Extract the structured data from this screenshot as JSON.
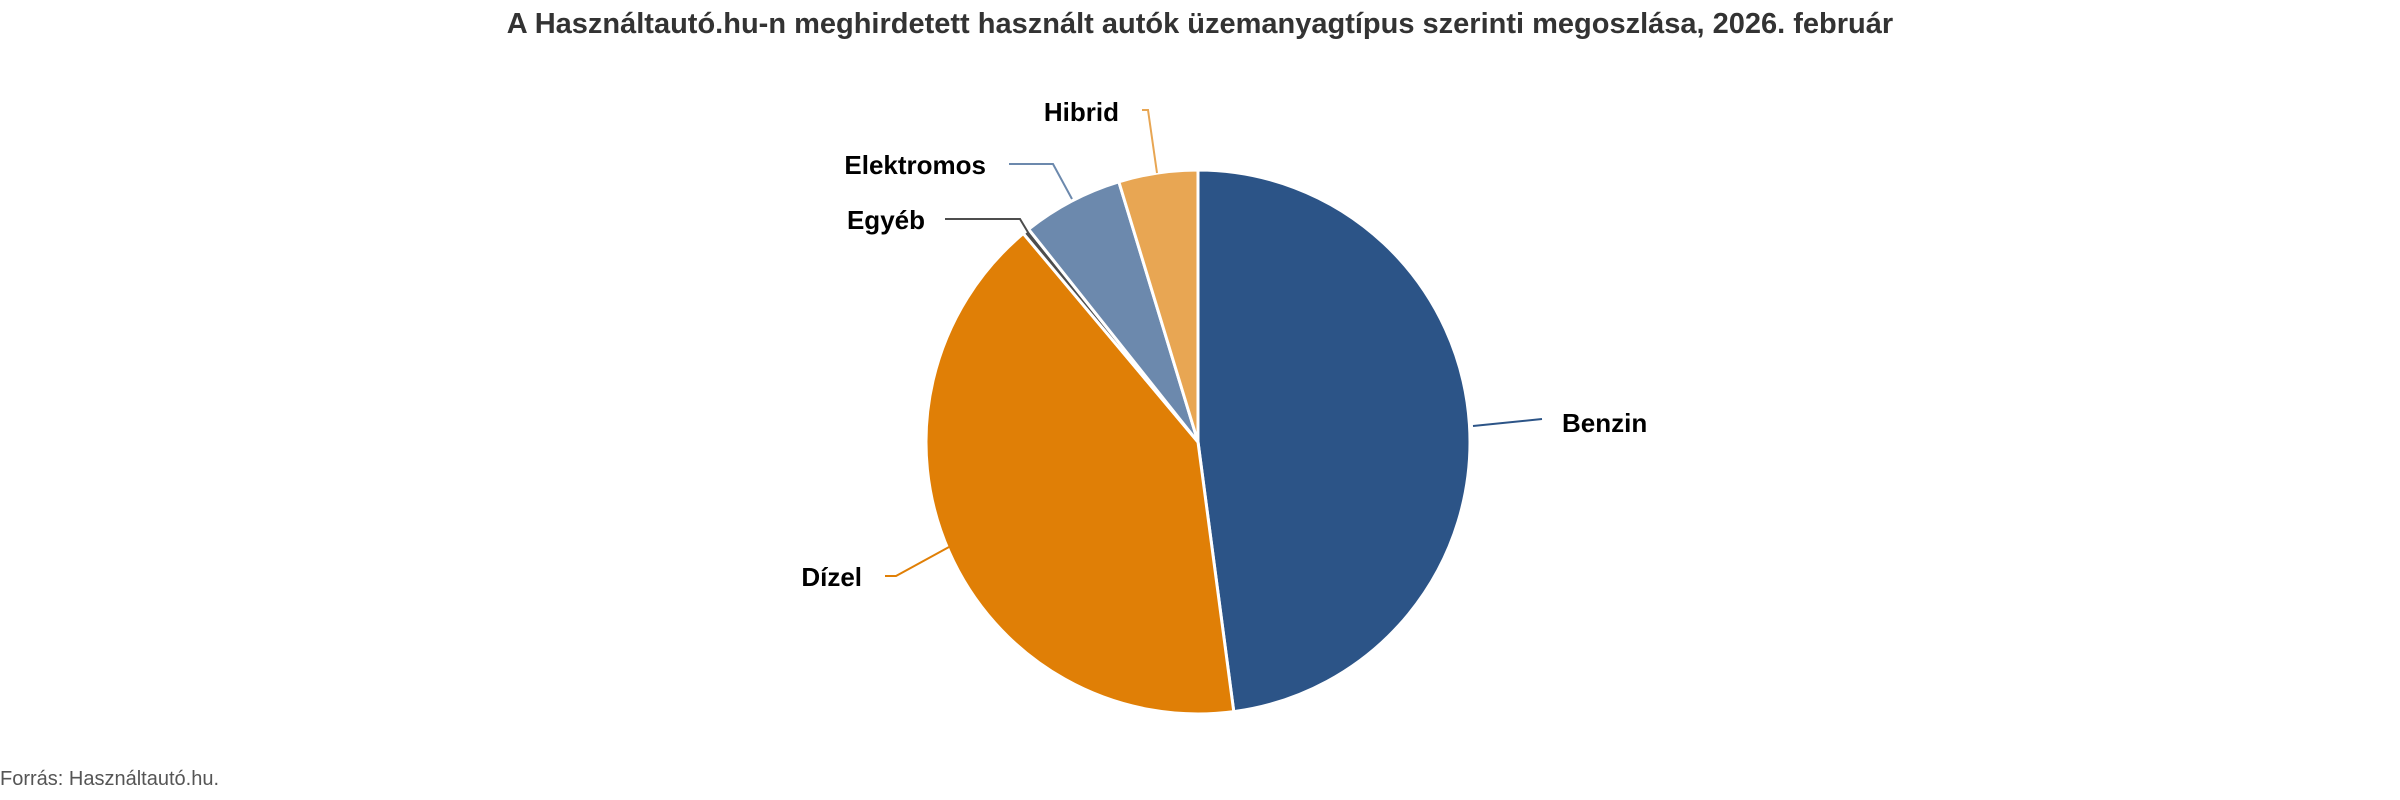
{
  "chart_data": {
    "type": "pie",
    "title": "A Használtautó.hu-n meghirdetett használt autók üzemanyagtípus szerinti megoszlása, 2026. február",
    "categories": [
      "Benzin",
      "Dízel",
      "Egyéb",
      "Elektromos",
      "Hibrid"
    ],
    "values": [
      47.9,
      41.0,
      0.4,
      6.0,
      4.7
    ],
    "unit": "%",
    "colors": [
      "#2c5487",
      "#e07f06",
      "#4d4d4d",
      "#6c89ad",
      "#e8a653"
    ],
    "start_angle": "12 o'clock",
    "direction": "clockwise",
    "legend": "none (direct labels)"
  },
  "source": "Forrás: Használtautó.hu."
}
